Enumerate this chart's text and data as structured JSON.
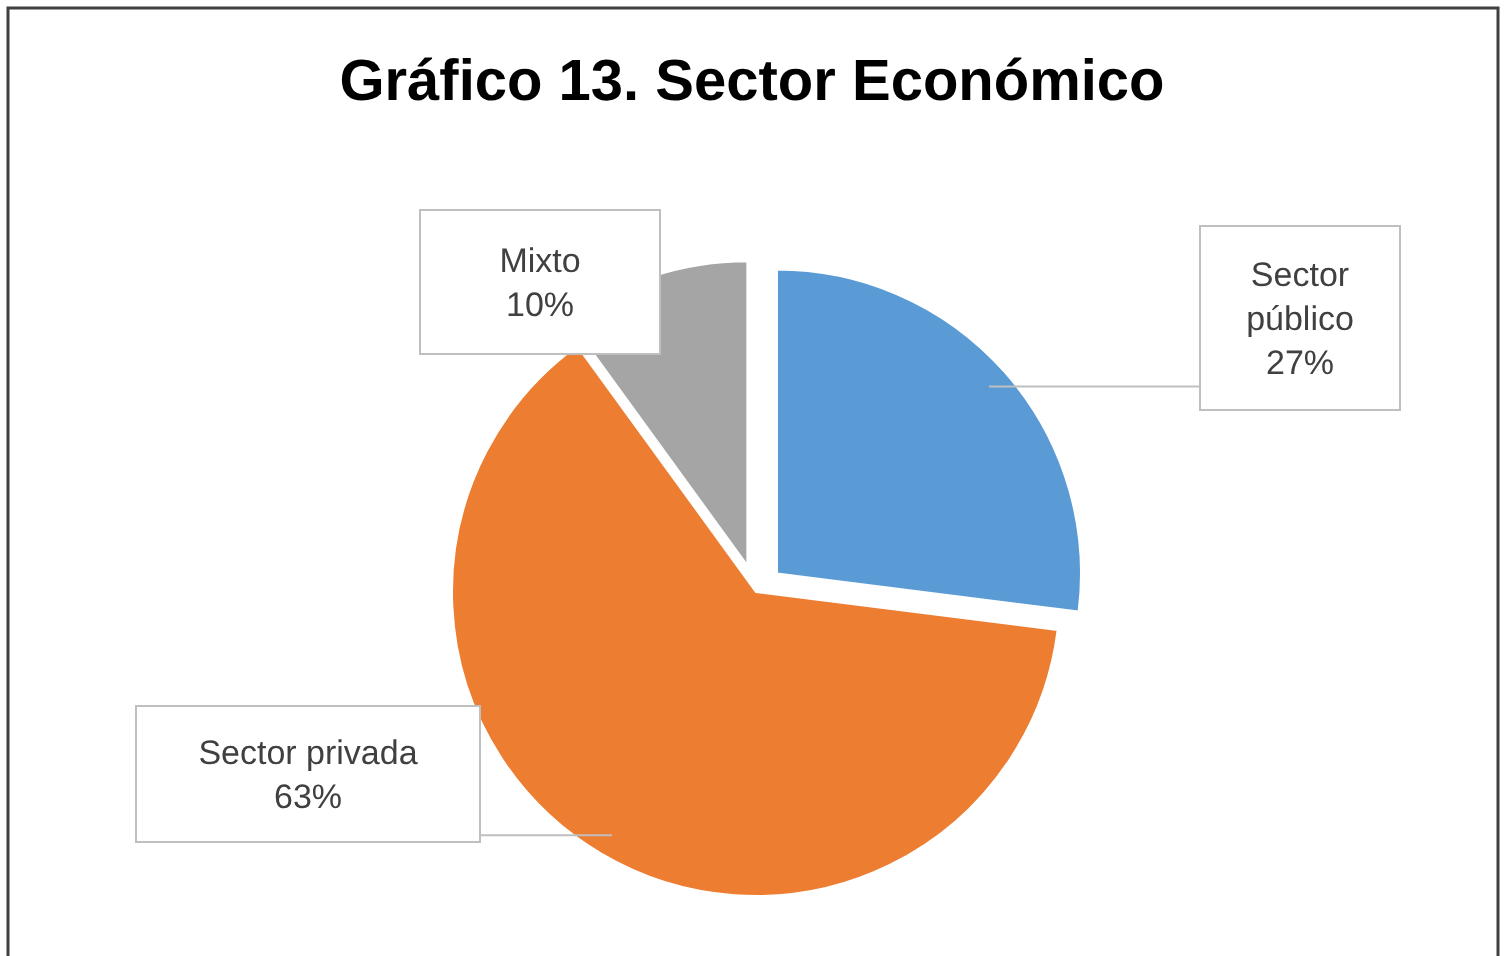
{
  "chart_data": {
    "type": "pie",
    "title": "Gráfico 13. Sector Económico",
    "categories": [
      "Sector público",
      "Sector privada",
      "Mixto"
    ],
    "values": [
      27,
      63,
      10
    ],
    "value_labels": [
      "27%",
      "63%",
      "10%"
    ],
    "colors": [
      "#5b9bd5",
      "#ed7d31",
      "#a5a5a5"
    ],
    "legend": false
  }
}
